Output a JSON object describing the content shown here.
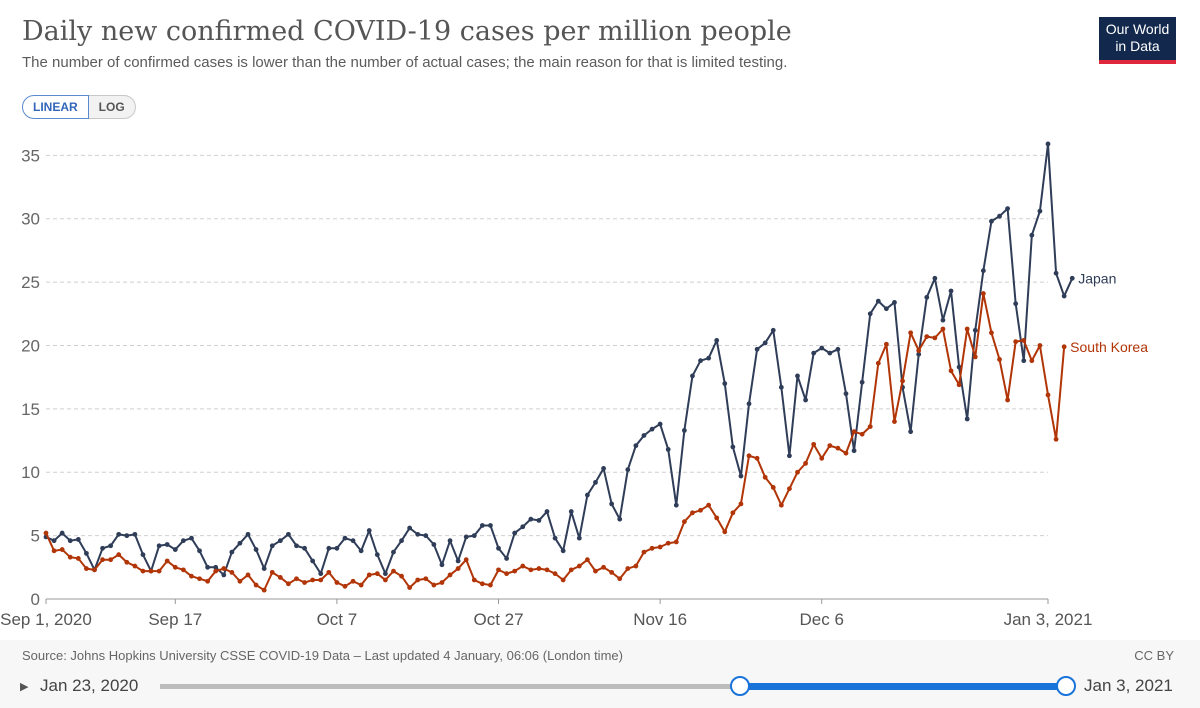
{
  "title": "Daily new confirmed COVID-19 cases per million people",
  "subtitle": "The number of confirmed cases is lower than the number of actual cases; the main reason for that is limited testing.",
  "logo": {
    "line1": "Our World",
    "line2": "in Data"
  },
  "scale_toggle": {
    "linear": "LINEAR",
    "log": "LOG",
    "selected": "LINEAR"
  },
  "footer": {
    "source": "Source: Johns Hopkins University CSSE COVID-19 Data – Last updated 4 January, 06:06 (London time)",
    "license": "CC BY"
  },
  "timeline": {
    "play_icon": "play-icon",
    "start_label": "Jan 23, 2020",
    "end_label": "Jan 3, 2021",
    "selection_start_fraction": 0.64,
    "selection_end_fraction": 1.0
  },
  "chart_data": {
    "type": "line",
    "title": "Daily new confirmed COVID-19 cases per million people",
    "x_label": "",
    "y_label": "",
    "x_range_days": [
      0,
      124
    ],
    "x_start_date": "Sep 1, 2020",
    "ylim": [
      0,
      37
    ],
    "y_ticks": [
      0,
      5,
      10,
      15,
      20,
      25,
      30,
      35
    ],
    "x_ticks": [
      {
        "day": 0,
        "label": "Sep 1, 2020"
      },
      {
        "day": 16,
        "label": "Sep 17"
      },
      {
        "day": 36,
        "label": "Oct 7"
      },
      {
        "day": 56,
        "label": "Oct 27"
      },
      {
        "day": 76,
        "label": "Nov 16"
      },
      {
        "day": 96,
        "label": "Dec 6"
      },
      {
        "day": 124,
        "label": "Jan 3, 2021"
      }
    ],
    "grid": true,
    "series": [
      {
        "name": "Japan",
        "color": "#2f3d58",
        "values": [
          4.9,
          4.6,
          5.2,
          4.6,
          4.7,
          3.6,
          2.3,
          4.0,
          4.2,
          5.1,
          5.0,
          5.1,
          3.5,
          2.2,
          4.2,
          4.3,
          3.9,
          4.6,
          4.8,
          3.8,
          2.5,
          2.5,
          1.9,
          3.7,
          4.4,
          5.1,
          3.9,
          2.4,
          4.2,
          4.6,
          5.1,
          4.2,
          4.0,
          3.0,
          2.0,
          4.0,
          4.0,
          4.8,
          4.6,
          3.8,
          5.4,
          3.5,
          2.0,
          3.7,
          4.6,
          5.6,
          5.1,
          5.0,
          4.3,
          2.7,
          4.6,
          3.0,
          4.9,
          5.0,
          5.8,
          5.8,
          4.0,
          3.2,
          5.2,
          5.7,
          6.3,
          6.2,
          6.9,
          4.8,
          3.8,
          6.9,
          4.8,
          8.2,
          9.2,
          10.3,
          7.5,
          6.3,
          10.2,
          12.1,
          12.9,
          13.4,
          13.8,
          11.8,
          7.4,
          13.3,
          17.6,
          18.8,
          19.0,
          20.4,
          17.0,
          12.0,
          9.7,
          15.4,
          19.7,
          20.2,
          21.2,
          16.7,
          11.3,
          17.6,
          15.7,
          19.4,
          19.8,
          19.4,
          19.7,
          16.2,
          11.7,
          17.1,
          22.5,
          23.5,
          22.9,
          23.4,
          16.7,
          13.2,
          19.3,
          23.8,
          25.3,
          22.0,
          24.3,
          18.3,
          14.2,
          21.2,
          25.9,
          29.8,
          30.2,
          30.8,
          23.3,
          18.8,
          28.7,
          30.6,
          35.9,
          25.7,
          23.9,
          25.3
        ]
      },
      {
        "name": "South Korea",
        "color": "#b13507",
        "values": [
          5.2,
          3.8,
          3.9,
          3.3,
          3.2,
          2.4,
          2.3,
          3.1,
          3.1,
          3.5,
          2.9,
          2.6,
          2.2,
          2.2,
          2.2,
          3.0,
          2.5,
          2.3,
          1.8,
          1.6,
          1.4,
          2.2,
          2.4,
          2.1,
          1.4,
          1.9,
          1.1,
          0.7,
          2.1,
          1.7,
          1.2,
          1.6,
          1.3,
          1.5,
          1.5,
          2.1,
          1.3,
          1.0,
          1.4,
          1.1,
          1.9,
          2.0,
          1.5,
          2.2,
          1.8,
          0.9,
          1.5,
          1.6,
          1.1,
          1.3,
          1.9,
          2.4,
          3.1,
          1.5,
          1.2,
          1.1,
          2.3,
          2.0,
          2.2,
          2.6,
          2.3,
          2.4,
          2.3,
          2.0,
          1.5,
          2.3,
          2.6,
          3.1,
          2.2,
          2.5,
          2.1,
          1.6,
          2.4,
          2.6,
          3.7,
          4.0,
          4.1,
          4.4,
          4.5,
          6.1,
          6.8,
          7.0,
          7.4,
          6.4,
          5.3,
          6.8,
          7.5,
          11.3,
          11.1,
          9.6,
          8.8,
          7.4,
          8.7,
          10.0,
          10.7,
          12.2,
          11.1,
          12.1,
          11.9,
          11.5,
          13.2,
          13.0,
          13.6,
          18.6,
          20.1,
          14.0,
          17.2,
          21.0,
          19.6,
          20.7,
          20.6,
          21.3,
          18.0,
          16.9,
          21.3,
          19.1,
          24.1,
          21.0,
          18.9,
          15.7,
          20.3,
          20.4,
          18.8,
          20.0,
          16.1,
          12.6,
          19.9
        ]
      }
    ]
  }
}
